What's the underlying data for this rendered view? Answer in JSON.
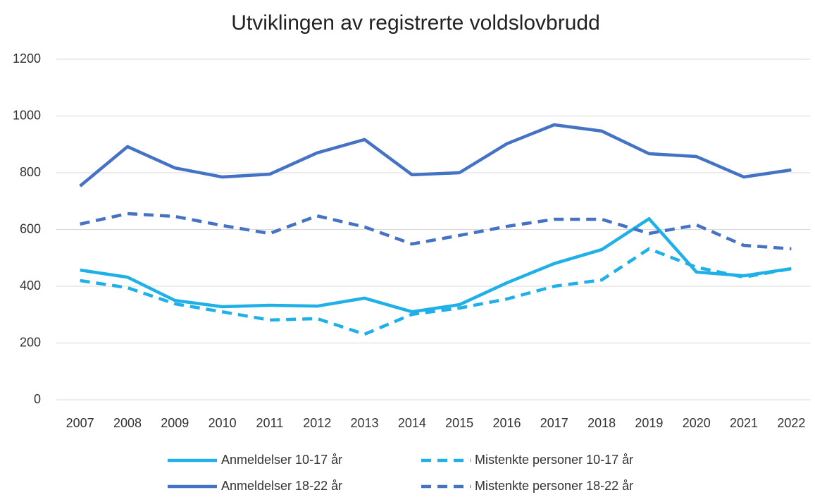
{
  "chart_data": {
    "type": "line",
    "title": "Utviklingen av registrerte voldslovbrudd",
    "categories": [
      "2007",
      "2008",
      "2009",
      "2010",
      "2011",
      "2012",
      "2013",
      "2014",
      "2015",
      "2016",
      "2017",
      "2018",
      "2019",
      "2020",
      "2021",
      "2022"
    ],
    "series": [
      {
        "name": "Anmeldelser 10-17 år",
        "color": "#1fb0e8",
        "style": "solid",
        "values": [
          457,
          432,
          350,
          328,
          333,
          330,
          358,
          310,
          335,
          412,
          480,
          529,
          638,
          450,
          437,
          462
        ]
      },
      {
        "name": "Mistenkte personer 10-17 år",
        "color": "#1fb0e8",
        "style": "dashed",
        "values": [
          420,
          395,
          338,
          310,
          281,
          286,
          231,
          301,
          323,
          355,
          400,
          422,
          532,
          467,
          432,
          462
        ]
      },
      {
        "name": "Anmeldelser 18-22 år",
        "color": "#4472c4",
        "style": "solid",
        "values": [
          753,
          892,
          817,
          785,
          795,
          870,
          917,
          793,
          800,
          902,
          969,
          947,
          867,
          857,
          785,
          810
        ]
      },
      {
        "name": "Mistenkte personer 18-22 år",
        "color": "#4472c4",
        "style": "dashed",
        "values": [
          619,
          656,
          646,
          614,
          586,
          648,
          609,
          549,
          579,
          611,
          636,
          636,
          586,
          616,
          544,
          532
        ]
      }
    ],
    "ylim": [
      0,
      1200
    ],
    "yticks": [
      0,
      200,
      400,
      600,
      800,
      1000,
      1200
    ],
    "grid": true,
    "legend": "bottom"
  }
}
